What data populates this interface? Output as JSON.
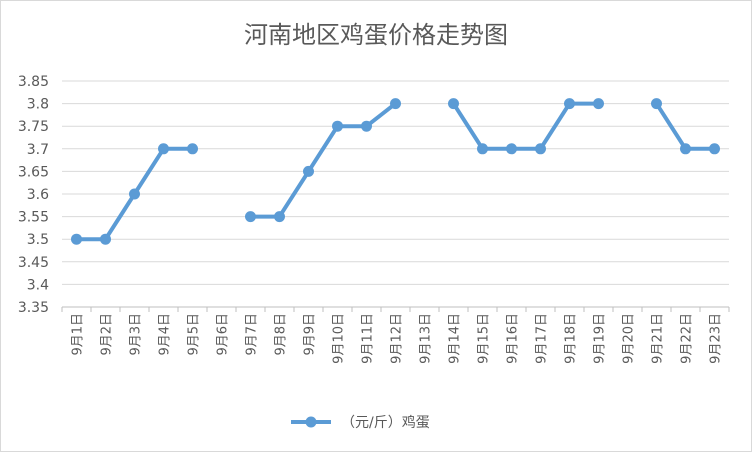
{
  "chart_data": {
    "type": "line",
    "title": "河南地区鸡蛋价格走势图",
    "categories": [
      "9月1日",
      "9月2日",
      "9月3日",
      "9月4日",
      "9月5日",
      "9月6日",
      "9月7日",
      "9月8日",
      "9月9日",
      "9月10日",
      "9月11日",
      "9月12日",
      "9月13日",
      "9月14日",
      "9月15日",
      "9月16日",
      "9月17日",
      "9月18日",
      "9月19日",
      "9月20日",
      "9月21日",
      "9月22日",
      "9月23日"
    ],
    "series": [
      {
        "name": "（元/斤）鸡蛋",
        "color": "#5b9bd5",
        "values": [
          3.5,
          3.5,
          3.6,
          3.7,
          3.7,
          null,
          3.55,
          3.55,
          3.65,
          3.75,
          3.75,
          3.8,
          null,
          3.8,
          3.7,
          3.7,
          3.7,
          3.8,
          3.8,
          null,
          3.8,
          3.7,
          3.7
        ]
      }
    ],
    "ylim": [
      3.35,
      3.85
    ],
    "yticks": [
      "3.85",
      "3.8",
      "3.75",
      "3.7",
      "3.65",
      "3.6",
      "3.55",
      "3.5",
      "3.45",
      "3.4",
      "3.35"
    ],
    "grid": true,
    "legend_position": "bottom"
  }
}
